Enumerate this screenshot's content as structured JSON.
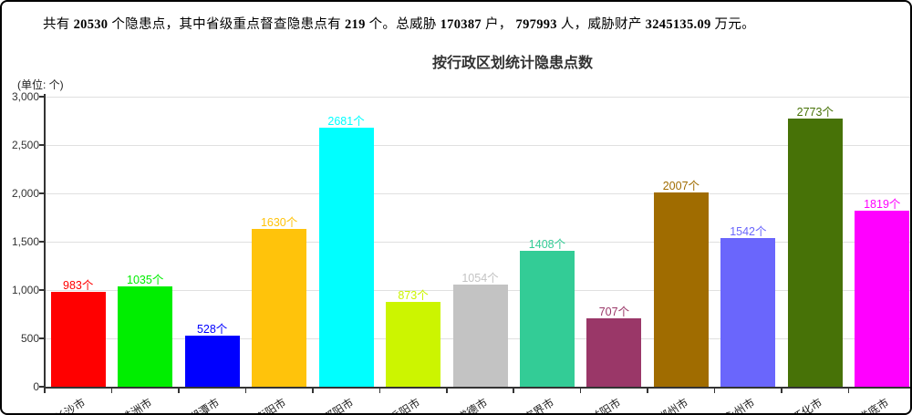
{
  "header": {
    "segments": [
      {
        "text": "共有",
        "bold": false
      },
      {
        "text": "20530",
        "bold": true
      },
      {
        "text": "个隐患点，其中省级重点督查隐患点有",
        "bold": false
      },
      {
        "text": "219",
        "bold": true
      },
      {
        "text": "个。总威胁",
        "bold": false
      },
      {
        "text": "170387",
        "bold": true
      },
      {
        "text": "户，",
        "bold": false
      },
      {
        "text": "797993",
        "bold": true
      },
      {
        "text": "人，威胁财产",
        "bold": false
      },
      {
        "text": "3245135.09",
        "bold": true
      },
      {
        "text": "万元。",
        "bold": false
      }
    ]
  },
  "chart": {
    "title": "按行政区划统计隐患点数",
    "unit_label": "(单位: 个)"
  },
  "chart_data": {
    "type": "bar",
    "title": "按行政区划统计隐患点数",
    "xlabel": "",
    "ylabel": "(单位: 个)",
    "categories": [
      "长沙市",
      "株洲市",
      "湘潭市",
      "衡阳市",
      "邵阳市",
      "岳阳市",
      "常德市",
      "张家界市",
      "益阳市",
      "郴州市",
      "永州市",
      "怀化市",
      "娄底市"
    ],
    "values": [
      983,
      1035,
      528,
      1630,
      2681,
      873,
      1054,
      1408,
      707,
      2007,
      1542,
      2773,
      1819
    ],
    "value_labels": [
      "983个",
      "1035个",
      "528个",
      "1630个",
      "2681个",
      "873个",
      "1054个",
      "1408个",
      "707个",
      "2007个",
      "1542个",
      "2773个",
      "1819个"
    ],
    "bar_colors": [
      "#ff0000",
      "#00ee00",
      "#0000ff",
      "#ffc30b",
      "#00ffff",
      "#ccf500",
      "#c3c3c3",
      "#33cc96",
      "#9a3768",
      "#a06c00",
      "#6a66fc",
      "#477207",
      "#ff00ff"
    ],
    "ylim": [
      0,
      3000
    ],
    "ytick_step": 500,
    "ytick_labels": [
      "0",
      "500",
      "1,000",
      "1,500",
      "2,000",
      "2,500",
      "3,000"
    ],
    "grid": true,
    "legend": null
  }
}
